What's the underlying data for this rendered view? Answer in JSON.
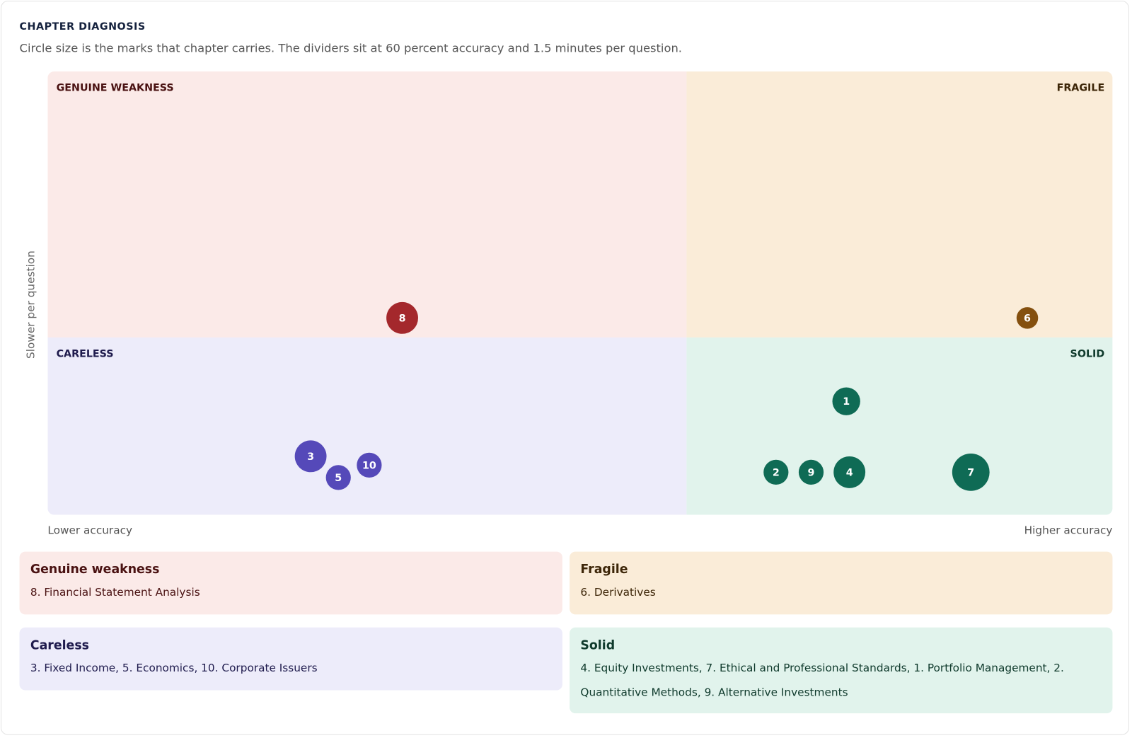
{
  "chart_data": {
    "type": "scatter",
    "title": "CHAPTER DIAGNOSIS",
    "subtitle": "Circle size is the marks that chapter carries. The dividers sit at 60 percent accuracy and 1.5 minutes per question.",
    "x_label_low": "Lower accuracy",
    "x_label_high": "Higher accuracy",
    "y_label": "Slower per question",
    "xlim": [
      0,
      100
    ],
    "ylim": [
      0.5,
      3
    ],
    "x_divider": 60,
    "y_divider": 1.5,
    "quadrants": [
      {
        "label": "GENUINE WEAKNESS",
        "fill": "#fbeae8",
        "text_color": "#4a1212"
      },
      {
        "label": "FRAGILE",
        "fill": "#faecd8",
        "text_color": "#3d2608"
      },
      {
        "label": "CARELESS",
        "fill": "#edecfa",
        "text_color": "#1f1b4d"
      },
      {
        "label": "SOLID",
        "fill": "#e1f3ec",
        "text_color": "#0f3a2c"
      }
    ],
    "series": [
      {
        "color": "#a4282c",
        "labels": [
          "8"
        ],
        "x": [
          33.3
        ],
        "y": [
          1.61
        ],
        "sizes": [
          13
        ]
      },
      {
        "color": "#84500f",
        "labels": [
          "6"
        ],
        "x": [
          92.0
        ],
        "y": [
          1.61
        ],
        "sizes": [
          6
        ]
      },
      {
        "color": "#5549b9",
        "labels": [
          "3",
          "5",
          "10"
        ],
        "x": [
          24.7,
          27.3,
          30.2
        ],
        "y": [
          0.83,
          0.71,
          0.78
        ],
        "sizes": [
          13,
          8,
          8
        ]
      },
      {
        "color": "#0f6b55",
        "labels": [
          "1",
          "2",
          "9",
          "4",
          "7"
        ],
        "x": [
          75.0,
          68.4,
          71.7,
          75.3,
          86.7
        ],
        "y": [
          1.14,
          0.74,
          0.74,
          0.74,
          0.74
        ],
        "sizes": [
          10,
          8,
          8,
          13,
          18
        ]
      }
    ]
  },
  "summary": [
    {
      "title": "Genuine weakness",
      "text": "8. Financial Statement Analysis",
      "fill": "#fbeae8",
      "color": "#4a1212"
    },
    {
      "title": "Fragile",
      "text": "6. Derivatives",
      "fill": "#faecd8",
      "color": "#3d2608"
    },
    {
      "title": "Careless",
      "text": "3. Fixed Income, 5. Economics, 10. Corporate Issuers",
      "fill": "#edecfa",
      "color": "#1f1b4d"
    },
    {
      "title": "Solid",
      "text": "4. Equity Investments, 7. Ethical and Professional Standards, 1. Portfolio Management, 2. Quantitative Methods, 9. Alternative Investments",
      "fill": "#e1f3ec",
      "color": "#0f3a2c"
    }
  ]
}
